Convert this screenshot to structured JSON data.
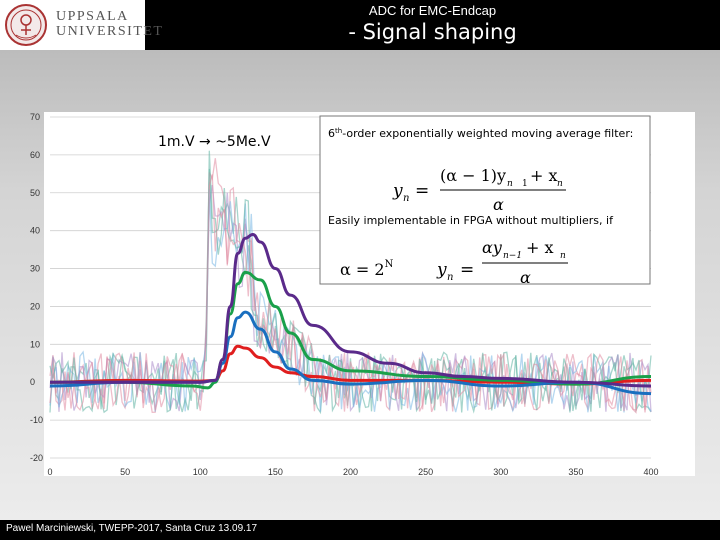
{
  "header": {
    "university_line1": "UPPSALA",
    "university_line2": "UNIVERSITET",
    "title": "ADC for EMC-Endcap",
    "subtitle": "- Signal shaping"
  },
  "footer": {
    "text": "Pawel Marciniewski, TWEPP-2017, Santa Cruz 13.09.17"
  },
  "annotations": {
    "scale_label": "1m.V → ~5Me.V",
    "filter_heading_prefix": "6",
    "filter_heading_sup": "th",
    "filter_heading_rest": "-order exponentially weighted moving average filter:",
    "fpga_note": "Easily implementable in FPGA without multipliers, if",
    "alpha_eq": "α = 2",
    "alpha_exp": "N"
  },
  "colors": {
    "red": "#e01e1e",
    "green": "#1aa04a",
    "blue": "#1a6fbf",
    "purple": "#5a2a8a",
    "noise_teal": "#5fb3a3",
    "noise_pink": "#e08aa0",
    "noise_lavender": "#a98bc8",
    "noise_lightblue": "#79b6e3"
  },
  "chart_data": {
    "type": "line",
    "title": "",
    "xlabel": "",
    "ylabel": "",
    "xlim": [
      0,
      400
    ],
    "ylim": [
      -20,
      70
    ],
    "x_ticks": [
      0,
      50,
      100,
      150,
      200,
      250,
      300,
      350,
      400
    ],
    "y_ticks": [
      70,
      60,
      50,
      40,
      30,
      20,
      10,
      0,
      -10,
      -20
    ],
    "grid": true,
    "series": [
      {
        "color": "red",
        "x": [
          0,
          50,
          100,
          110,
          115,
          120,
          125,
          130,
          140,
          150,
          160,
          175,
          200,
          250,
          300,
          350,
          400
        ],
        "values": [
          0,
          0.5,
          0.3,
          0.5,
          3,
          7.5,
          9.5,
          9,
          6.5,
          4,
          2.5,
          1.5,
          0.5,
          0.5,
          0,
          -0.5,
          0.5
        ]
      },
      {
        "color": "green",
        "x": [
          0,
          50,
          95,
          105,
          110,
          115,
          120,
          125,
          130,
          140,
          150,
          160,
          175,
          200,
          250,
          300,
          350,
          400
        ],
        "values": [
          0,
          0,
          -1,
          -1.5,
          0,
          6,
          18,
          26,
          29,
          27,
          20,
          13,
          6,
          3,
          1.5,
          0.5,
          -0.5,
          1.5
        ]
      },
      {
        "color": "blue",
        "x": [
          0,
          50,
          100,
          110,
          115,
          120,
          125,
          130,
          140,
          150,
          160,
          175,
          200,
          250,
          300,
          350,
          400
        ],
        "values": [
          -1,
          0,
          0,
          0.5,
          5,
          12,
          17,
          18.5,
          14,
          8,
          3.5,
          0.5,
          -0.5,
          0.5,
          -1,
          0,
          -3
        ]
      },
      {
        "color": "purple",
        "x": [
          0,
          50,
          100,
          110,
          115,
          120,
          125,
          130,
          135,
          140,
          150,
          160,
          175,
          200,
          225,
          250,
          275,
          300,
          350,
          400
        ],
        "values": [
          0,
          0,
          0,
          0.5,
          6,
          20,
          34,
          38,
          39,
          37,
          30,
          23,
          15,
          8,
          5,
          2.5,
          1.5,
          1,
          0,
          -1
        ]
      }
    ]
  }
}
